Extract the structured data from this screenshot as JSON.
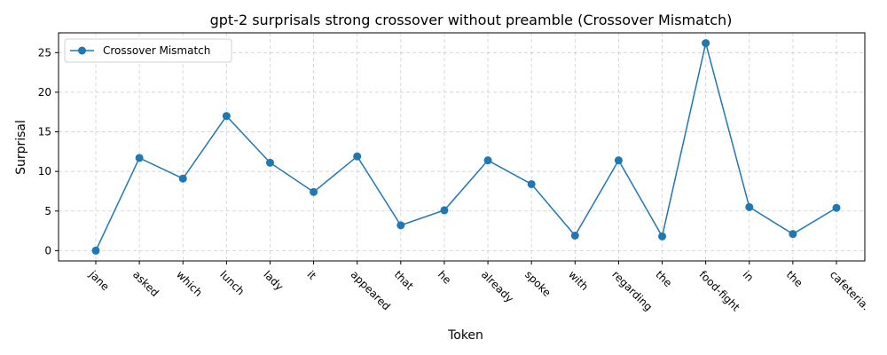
{
  "chart_data": {
    "type": "line",
    "title": "gpt-2 surprisals strong crossover without preamble (Crossover Mismatch)",
    "xlabel": "Token",
    "ylabel": "Surprisal",
    "categories": [
      "jane",
      "asked",
      "which",
      "lunch",
      "lady",
      "it",
      "appeared",
      "that",
      "he",
      "already",
      "spoke",
      "with",
      "regarding",
      "the",
      "food-fight",
      "in",
      "the",
      "cafeteria."
    ],
    "series": [
      {
        "name": "Crossover Mismatch",
        "color": "#1f77b4",
        "values": [
          0.0,
          11.7,
          9.1,
          17.0,
          11.1,
          7.4,
          11.9,
          3.2,
          5.1,
          11.4,
          8.4,
          1.9,
          11.4,
          1.8,
          26.2,
          5.5,
          2.1,
          5.4
        ]
      }
    ],
    "ylim": [
      -1.3,
      27.5
    ],
    "yticks": [
      0,
      5,
      10,
      15,
      20,
      25
    ],
    "grid": true,
    "legend_position": "top-left"
  }
}
